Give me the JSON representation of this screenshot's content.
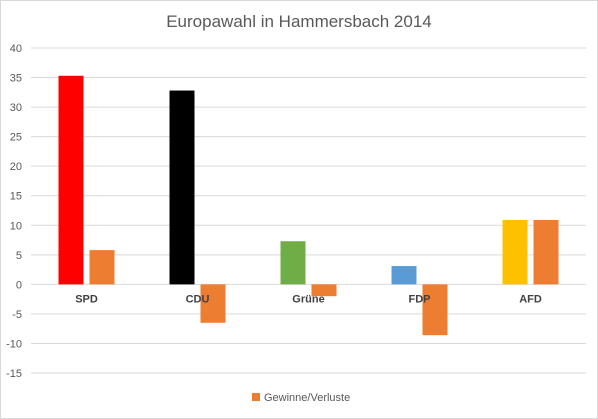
{
  "chart_data": {
    "type": "bar",
    "title": "Europawahl in Hammersbach 2014",
    "xlabel": "",
    "ylabel": "",
    "categories": [
      "SPD",
      "CDU",
      "Grüne",
      "FDP",
      "AFD"
    ],
    "series": [
      {
        "values": [
          35.3,
          32.8,
          7.3,
          3.1,
          10.9
        ],
        "colors": [
          "#ff0000",
          "#000000",
          "#70ad47",
          "#5b9bd5",
          "#ffc000"
        ]
      },
      {
        "name": "Gewinne/Verluste",
        "values": [
          5.8,
          -6.5,
          -2.0,
          -8.6,
          10.9
        ],
        "color": "#ed7d31"
      }
    ],
    "ylim": [
      -15,
      40
    ],
    "yticks": [
      40,
      35,
      30,
      25,
      20,
      15,
      10,
      5,
      0,
      -5,
      -10,
      -15
    ],
    "grid": true,
    "legend": "bottom"
  }
}
